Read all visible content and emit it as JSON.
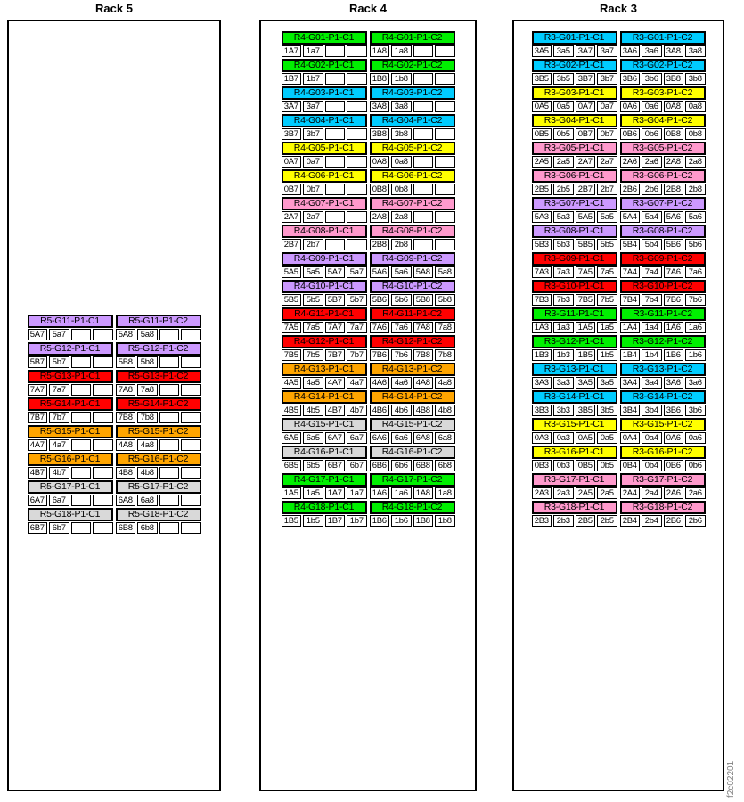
{
  "figure_id": "f2c02201",
  "palette": {
    "green": "#00F000",
    "cyan": "#00CCFF",
    "yellow": "#FFFF00",
    "pink": "#FF99CC",
    "purple": "#CC99FF",
    "red": "#FF0000",
    "orange": "#FFA500",
    "gray": "#D9D9D9"
  },
  "racks": [
    {
      "title": "Rack 5",
      "groups": [
        {
          "color": "purple",
          "c1": {
            "label": "R5-G11-P1-C1",
            "cells": [
              "5A7",
              "5a7",
              "",
              ""
            ]
          },
          "c2": {
            "label": "R5-G11-P1-C2",
            "cells": [
              "5A8",
              "5a8",
              "",
              ""
            ]
          }
        },
        {
          "color": "purple",
          "c1": {
            "label": "R5-G12-P1-C1",
            "cells": [
              "5B7",
              "5b7",
              "",
              ""
            ]
          },
          "c2": {
            "label": "R5-G12-P1-C2",
            "cells": [
              "5B8",
              "5b8",
              "",
              ""
            ]
          }
        },
        {
          "color": "red",
          "c1": {
            "label": "R5-G13-P1-C1",
            "cells": [
              "7A7",
              "7a7",
              "",
              ""
            ]
          },
          "c2": {
            "label": "R5-G13-P1-C2",
            "cells": [
              "7A8",
              "7a8",
              "",
              ""
            ]
          }
        },
        {
          "color": "red",
          "c1": {
            "label": "R5-G14-P1-C1",
            "cells": [
              "7B7",
              "7b7",
              "",
              ""
            ]
          },
          "c2": {
            "label": "R5-G14-P1-C2",
            "cells": [
              "7B8",
              "7b8",
              "",
              ""
            ]
          }
        },
        {
          "color": "orange",
          "c1": {
            "label": "R5-G15-P1-C1",
            "cells": [
              "4A7",
              "4a7",
              "",
              ""
            ]
          },
          "c2": {
            "label": "R5-G15-P1-C2",
            "cells": [
              "4A8",
              "4a8",
              "",
              ""
            ]
          }
        },
        {
          "color": "orange",
          "c1": {
            "label": "R5-G16-P1-C1",
            "cells": [
              "4B7",
              "4b7",
              "",
              ""
            ]
          },
          "c2": {
            "label": "R5-G16-P1-C2",
            "cells": [
              "4B8",
              "4b8",
              "",
              ""
            ]
          }
        },
        {
          "color": "gray",
          "c1": {
            "label": "R5-G17-P1-C1",
            "cells": [
              "6A7",
              "6a7",
              "",
              ""
            ]
          },
          "c2": {
            "label": "R5-G17-P1-C2",
            "cells": [
              "6A8",
              "6a8",
              "",
              ""
            ]
          }
        },
        {
          "color": "gray",
          "c1": {
            "label": "R5-G18-P1-C1",
            "cells": [
              "6B7",
              "6b7",
              "",
              ""
            ]
          },
          "c2": {
            "label": "R5-G18-P1-C2",
            "cells": [
              "6B8",
              "6b8",
              "",
              ""
            ]
          }
        }
      ]
    },
    {
      "title": "Rack 4",
      "groups": [
        {
          "color": "green",
          "c1": {
            "label": "R4-G01-P1-C1",
            "cells": [
              "1A7",
              "1a7",
              "",
              ""
            ]
          },
          "c2": {
            "label": "R4-G01-P1-C2",
            "cells": [
              "1A8",
              "1a8",
              "",
              ""
            ]
          }
        },
        {
          "color": "green",
          "c1": {
            "label": "R4-G02-P1-C1",
            "cells": [
              "1B7",
              "1b7",
              "",
              ""
            ]
          },
          "c2": {
            "label": "R4-G02-P1-C2",
            "cells": [
              "1B8",
              "1b8",
              "",
              ""
            ]
          }
        },
        {
          "color": "cyan",
          "c1": {
            "label": "R4-G03-P1-C1",
            "cells": [
              "3A7",
              "3a7",
              "",
              ""
            ]
          },
          "c2": {
            "label": "R4-G03-P1-C2",
            "cells": [
              "3A8",
              "3a8",
              "",
              ""
            ]
          }
        },
        {
          "color": "cyan",
          "c1": {
            "label": "R4-G04-P1-C1",
            "cells": [
              "3B7",
              "3b7",
              "",
              ""
            ]
          },
          "c2": {
            "label": "R4-G04-P1-C2",
            "cells": [
              "3B8",
              "3b8",
              "",
              ""
            ]
          }
        },
        {
          "color": "yellow",
          "c1": {
            "label": "R4-G05-P1-C1",
            "cells": [
              "0A7",
              "0a7",
              "",
              ""
            ]
          },
          "c2": {
            "label": "R4-G05-P1-C2",
            "cells": [
              "0A8",
              "0a8",
              "",
              ""
            ]
          }
        },
        {
          "color": "yellow",
          "c1": {
            "label": "R4-G06-P1-C1",
            "cells": [
              "0B7",
              "0b7",
              "",
              ""
            ]
          },
          "c2": {
            "label": "R4-G06-P1-C2",
            "cells": [
              "0B8",
              "0b8",
              "",
              ""
            ]
          }
        },
        {
          "color": "pink",
          "c1": {
            "label": "R4-G07-P1-C1",
            "cells": [
              "2A7",
              "2a7",
              "",
              ""
            ]
          },
          "c2": {
            "label": "R4-G07-P1-C2",
            "cells": [
              "2A8",
              "2a8",
              "",
              ""
            ]
          }
        },
        {
          "color": "pink",
          "c1": {
            "label": "R4-G08-P1-C1",
            "cells": [
              "2B7",
              "2b7",
              "",
              ""
            ]
          },
          "c2": {
            "label": "R4-G08-P1-C2",
            "cells": [
              "2B8",
              "2b8",
              "",
              ""
            ]
          }
        },
        {
          "color": "purple",
          "c1": {
            "label": "R4-G09-P1-C1",
            "cells": [
              "5A5",
              "5a5",
              "5A7",
              "5a7"
            ]
          },
          "c2": {
            "label": "R4-G09-P1-C2",
            "cells": [
              "5A6",
              "5a6",
              "5A8",
              "5a8"
            ]
          }
        },
        {
          "color": "purple",
          "c1": {
            "label": "R4-G10-P1-C1",
            "cells": [
              "5B5",
              "5b5",
              "5B7",
              "5b7"
            ]
          },
          "c2": {
            "label": "R4-G10-P1-C2",
            "cells": [
              "5B6",
              "5b6",
              "5B8",
              "5b8"
            ]
          }
        },
        {
          "color": "red",
          "c1": {
            "label": "R4-G11-P1-C1",
            "cells": [
              "7A5",
              "7a5",
              "7A7",
              "7a7"
            ]
          },
          "c2": {
            "label": "R4-G11-P1-C2",
            "cells": [
              "7A6",
              "7a6",
              "7A8",
              "7a8"
            ]
          }
        },
        {
          "color": "red",
          "c1": {
            "label": "R4-G12-P1-C1",
            "cells": [
              "7B5",
              "7b5",
              "7B7",
              "7b7"
            ]
          },
          "c2": {
            "label": "R4-G12-P1-C2",
            "cells": [
              "7B6",
              "7b6",
              "7B8",
              "7b8"
            ]
          }
        },
        {
          "color": "orange",
          "c1": {
            "label": "R4-G13-P1-C1",
            "cells": [
              "4A5",
              "4a5",
              "4A7",
              "4a7"
            ]
          },
          "c2": {
            "label": "R4-G13-P1-C2",
            "cells": [
              "4A6",
              "4a6",
              "4A8",
              "4a8"
            ]
          }
        },
        {
          "color": "orange",
          "c1": {
            "label": "R4-G14-P1-C1",
            "cells": [
              "4B5",
              "4b5",
              "4B7",
              "4b7"
            ]
          },
          "c2": {
            "label": "R4-G14-P1-C2",
            "cells": [
              "4B6",
              "4b6",
              "4B8",
              "4b8"
            ]
          }
        },
        {
          "color": "gray",
          "c1": {
            "label": "R4-G15-P1-C1",
            "cells": [
              "6A5",
              "6a5",
              "6A7",
              "6a7"
            ]
          },
          "c2": {
            "label": "R4-G15-P1-C2",
            "cells": [
              "6A6",
              "6a6",
              "6A8",
              "6a8"
            ]
          }
        },
        {
          "color": "gray",
          "c1": {
            "label": "R4-G16-P1-C1",
            "cells": [
              "6B5",
              "6b5",
              "6B7",
              "6b7"
            ]
          },
          "c2": {
            "label": "R4-G16-P1-C2",
            "cells": [
              "6B6",
              "6b6",
              "6B8",
              "6b8"
            ]
          }
        },
        {
          "color": "green",
          "c1": {
            "label": "R4-G17-P1-C1",
            "cells": [
              "1A5",
              "1a5",
              "1A7",
              "1a7"
            ]
          },
          "c2": {
            "label": "R4-G17-P1-C2",
            "cells": [
              "1A6",
              "1a6",
              "1A8",
              "1a8"
            ]
          }
        },
        {
          "color": "green",
          "c1": {
            "label": "R4-G18-P1-C1",
            "cells": [
              "1B5",
              "1b5",
              "1B7",
              "1b7"
            ]
          },
          "c2": {
            "label": "R4-G18-P1-C2",
            "cells": [
              "1B6",
              "1b6",
              "1B8",
              "1b8"
            ]
          }
        }
      ]
    },
    {
      "title": "Rack 3",
      "groups": [
        {
          "color": "cyan",
          "c1": {
            "label": "R3-G01-P1-C1",
            "cells": [
              "3A5",
              "3a5",
              "3A7",
              "3a7"
            ]
          },
          "c2": {
            "label": "R3-G01-P1-C2",
            "cells": [
              "3A6",
              "3a6",
              "3A8",
              "3a8"
            ]
          }
        },
        {
          "color": "cyan",
          "c1": {
            "label": "R3-G02-P1-C1",
            "cells": [
              "3B5",
              "3b5",
              "3B7",
              "3b7"
            ]
          },
          "c2": {
            "label": "R3-G02-P1-C2",
            "cells": [
              "3B6",
              "3b6",
              "3B8",
              "3b8"
            ]
          }
        },
        {
          "color": "yellow",
          "c1": {
            "label": "R3-G03-P1-C1",
            "cells": [
              "0A5",
              "0a5",
              "0A7",
              "0a7"
            ]
          },
          "c2": {
            "label": "R3-G03-P1-C2",
            "cells": [
              "0A6",
              "0a6",
              "0A8",
              "0a8"
            ]
          }
        },
        {
          "color": "yellow",
          "c1": {
            "label": "R3-G04-P1-C1",
            "cells": [
              "0B5",
              "0b5",
              "0B7",
              "0b7"
            ]
          },
          "c2": {
            "label": "R3-G04-P1-C2",
            "cells": [
              "0B6",
              "0b6",
              "0B8",
              "0b8"
            ]
          }
        },
        {
          "color": "pink",
          "c1": {
            "label": "R3-G05-P1-C1",
            "cells": [
              "2A5",
              "2a5",
              "2A7",
              "2a7"
            ]
          },
          "c2": {
            "label": "R3-G05-P1-C2",
            "cells": [
              "2A6",
              "2a6",
              "2A8",
              "2a8"
            ]
          }
        },
        {
          "color": "pink",
          "c1": {
            "label": "R3-G06-P1-C1",
            "cells": [
              "2B5",
              "2b5",
              "2B7",
              "2b7"
            ]
          },
          "c2": {
            "label": "R3-G06-P1-C2",
            "cells": [
              "2B6",
              "2b6",
              "2B8",
              "2b8"
            ]
          }
        },
        {
          "color": "purple",
          "c1": {
            "label": "R3-G07-P1-C1",
            "cells": [
              "5A3",
              "5a3",
              "5A5",
              "5a5"
            ]
          },
          "c2": {
            "label": "R3-G07-P1-C2",
            "cells": [
              "5A4",
              "5a4",
              "5A6",
              "5a6"
            ]
          }
        },
        {
          "color": "purple",
          "c1": {
            "label": "R3-G08-P1-C1",
            "cells": [
              "5B3",
              "5b3",
              "5B5",
              "5b5"
            ]
          },
          "c2": {
            "label": "R3-G08-P1-C2",
            "cells": [
              "5B4",
              "5b4",
              "5B6",
              "5b6"
            ]
          }
        },
        {
          "color": "red",
          "c1": {
            "label": "R3-G09-P1-C1",
            "cells": [
              "7A3",
              "7a3",
              "7A5",
              "7a5"
            ]
          },
          "c2": {
            "label": "R3-G09-P1-C2",
            "cells": [
              "7A4",
              "7a4",
              "7A6",
              "7a6"
            ]
          }
        },
        {
          "color": "red",
          "c1": {
            "label": "R3-G10-P1-C1",
            "cells": [
              "7B3",
              "7b3",
              "7B5",
              "7b5"
            ]
          },
          "c2": {
            "label": "R3-G10-P1-C2",
            "cells": [
              "7B4",
              "7b4",
              "7B6",
              "7b6"
            ]
          }
        },
        {
          "color": "green",
          "c1": {
            "label": "R3-G11-P1-C1",
            "cells": [
              "1A3",
              "1a3",
              "1A5",
              "1a5"
            ]
          },
          "c2": {
            "label": "R3-G11-P1-C2",
            "cells": [
              "1A4",
              "1a4",
              "1A6",
              "1a6"
            ]
          }
        },
        {
          "color": "green",
          "c1": {
            "label": "R3-G12-P1-C1",
            "cells": [
              "1B3",
              "1b3",
              "1B5",
              "1b5"
            ]
          },
          "c2": {
            "label": "R3-G12-P1-C2",
            "cells": [
              "1B4",
              "1b4",
              "1B6",
              "1b6"
            ]
          }
        },
        {
          "color": "cyan",
          "c1": {
            "label": "R3-G13-P1-C1",
            "cells": [
              "3A3",
              "3a3",
              "3A5",
              "3a5"
            ]
          },
          "c2": {
            "label": "R3-G13-P1-C2",
            "cells": [
              "3A4",
              "3a4",
              "3A6",
              "3a6"
            ]
          }
        },
        {
          "color": "cyan",
          "c1": {
            "label": "R3-G14-P1-C1",
            "cells": [
              "3B3",
              "3b3",
              "3B5",
              "3b5"
            ]
          },
          "c2": {
            "label": "R3-G14-P1-C2",
            "cells": [
              "3B4",
              "3b4",
              "3B6",
              "3b6"
            ]
          }
        },
        {
          "color": "yellow",
          "c1": {
            "label": "R3-G15-P1-C1",
            "cells": [
              "0A3",
              "0a3",
              "0A5",
              "0a5"
            ]
          },
          "c2": {
            "label": "R3-G15-P1-C2",
            "cells": [
              "0A4",
              "0a4",
              "0A6",
              "0a6"
            ]
          }
        },
        {
          "color": "yellow",
          "c1": {
            "label": "R3-G16-P1-C1",
            "cells": [
              "0B3",
              "0b3",
              "0B5",
              "0b5"
            ]
          },
          "c2": {
            "label": "R3-G16-P1-C2",
            "cells": [
              "0B4",
              "0b4",
              "0B6",
              "0b6"
            ]
          }
        },
        {
          "color": "pink",
          "c1": {
            "label": "R3-G17-P1-C1",
            "cells": [
              "2A3",
              "2a3",
              "2A5",
              "2a5"
            ]
          },
          "c2": {
            "label": "R3-G17-P1-C2",
            "cells": [
              "2A4",
              "2a4",
              "2A6",
              "2a6"
            ]
          }
        },
        {
          "color": "pink",
          "c1": {
            "label": "R3-G18-P1-C1",
            "cells": [
              "2B3",
              "2b3",
              "2B5",
              "2b5"
            ]
          },
          "c2": {
            "label": "R3-G18-P1-C2",
            "cells": [
              "2B4",
              "2b4",
              "2B6",
              "2b6"
            ]
          }
        }
      ]
    }
  ]
}
